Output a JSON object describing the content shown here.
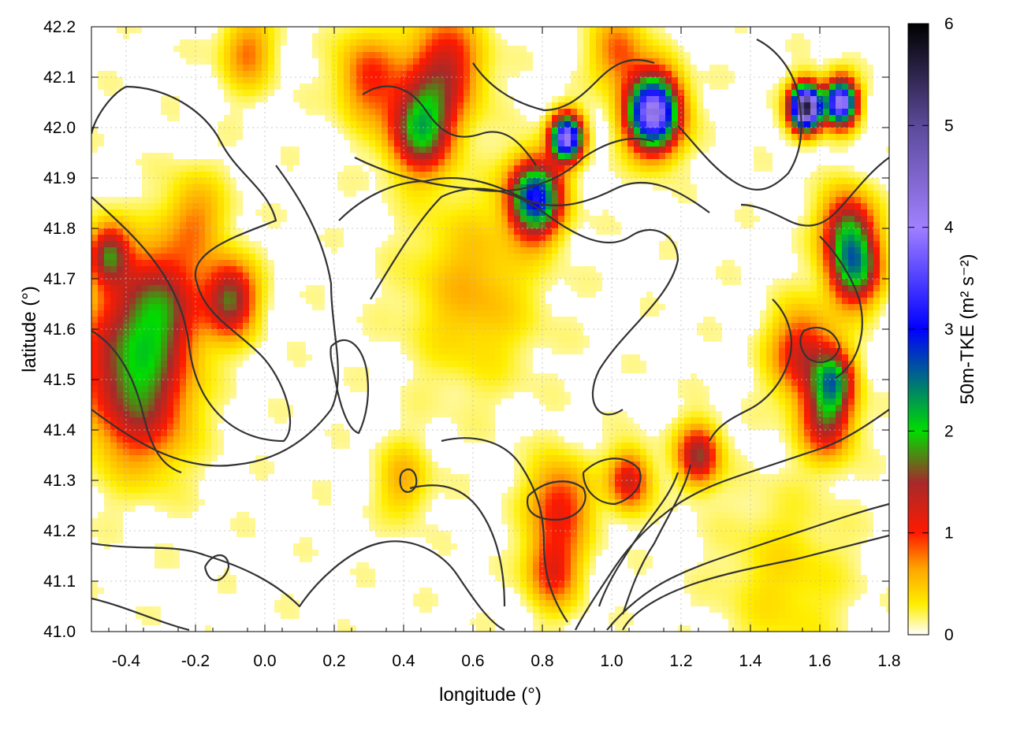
{
  "chart_data": {
    "type": "heatmap",
    "xlabel": "longitude (°)",
    "ylabel": "latitude (°)",
    "colorbar_label": "50m-TKE (m² s⁻²)",
    "xlim": [
      -0.5,
      1.8
    ],
    "ylim": [
      41.0,
      42.2
    ],
    "x_ticks": [
      "-0.4",
      "-0.2",
      "0.0",
      "0.2",
      "0.4",
      "0.6",
      "0.8",
      "1.0",
      "1.2",
      "1.4",
      "1.6",
      "1.8"
    ],
    "y_ticks": [
      "41.0",
      "41.1",
      "41.2",
      "41.3",
      "41.4",
      "41.5",
      "41.6",
      "41.7",
      "41.8",
      "41.9",
      "42.0",
      "42.1",
      "42.2"
    ],
    "colorbar_range": [
      0,
      6
    ],
    "colorbar_ticks": [
      "0",
      "1",
      "2",
      "3",
      "4",
      "5",
      "6"
    ],
    "grid": true,
    "colormap": [
      {
        "v": 0.0,
        "c": "#ffffff"
      },
      {
        "v": 0.3,
        "c": "#ffee00"
      },
      {
        "v": 0.65,
        "c": "#ffa500"
      },
      {
        "v": 1.0,
        "c": "#ff1a00"
      },
      {
        "v": 1.5,
        "c": "#a52a2a"
      },
      {
        "v": 2.0,
        "c": "#00dd00"
      },
      {
        "v": 3.0,
        "c": "#0000ff"
      },
      {
        "v": 4.0,
        "c": "#a080ff"
      },
      {
        "v": 5.0,
        "c": "#5b4a9a"
      },
      {
        "v": 6.0,
        "c": "#000000"
      }
    ],
    "hotspots": [
      {
        "lon": -0.4,
        "lat": 41.55,
        "tke": 1.1,
        "r": 0.1
      },
      {
        "lon": -0.3,
        "lat": 41.65,
        "tke": 1.3,
        "r": 0.08
      },
      {
        "lon": -0.35,
        "lat": 41.45,
        "tke": 1.0,
        "r": 0.09
      },
      {
        "lon": -0.1,
        "lat": 41.66,
        "tke": 1.6,
        "r": 0.05
      },
      {
        "lon": -0.45,
        "lat": 41.75,
        "tke": 1.5,
        "r": 0.04
      },
      {
        "lon": -0.2,
        "lat": 41.82,
        "tke": 0.6,
        "r": 0.06
      },
      {
        "lon": 0.45,
        "lat": 42.0,
        "tke": 2.0,
        "r": 0.06
      },
      {
        "lon": 0.52,
        "lat": 42.12,
        "tke": 1.2,
        "r": 0.07
      },
      {
        "lon": 0.78,
        "lat": 41.86,
        "tke": 3.0,
        "r": 0.05
      },
      {
        "lon": 0.87,
        "lat": 41.98,
        "tke": 4.0,
        "r": 0.03
      },
      {
        "lon": 1.12,
        "lat": 42.03,
        "tke": 4.2,
        "r": 0.05
      },
      {
        "lon": 1.56,
        "lat": 42.04,
        "tke": 5.6,
        "r": 0.03
      },
      {
        "lon": 1.66,
        "lat": 42.05,
        "tke": 4.2,
        "r": 0.03
      },
      {
        "lon": 1.7,
        "lat": 41.72,
        "tke": 2.0,
        "r": 0.05
      },
      {
        "lon": 1.68,
        "lat": 41.8,
        "tke": 1.5,
        "r": 0.05
      },
      {
        "lon": 1.55,
        "lat": 41.55,
        "tke": 1.2,
        "r": 0.06
      },
      {
        "lon": 1.64,
        "lat": 41.5,
        "tke": 1.8,
        "r": 0.04
      },
      {
        "lon": 1.62,
        "lat": 41.42,
        "tke": 1.4,
        "r": 0.05
      },
      {
        "lon": 1.25,
        "lat": 41.35,
        "tke": 1.5,
        "r": 0.04
      },
      {
        "lon": 0.85,
        "lat": 41.25,
        "tke": 1.0,
        "r": 0.06
      },
      {
        "lon": 0.83,
        "lat": 41.12,
        "tke": 1.0,
        "r": 0.05
      },
      {
        "lon": 0.6,
        "lat": 41.68,
        "tke": 0.5,
        "r": 0.12
      },
      {
        "lon": 0.3,
        "lat": 42.1,
        "tke": 0.9,
        "r": 0.06
      },
      {
        "lon": 0.4,
        "lat": 41.3,
        "tke": 0.5,
        "r": 0.05
      },
      {
        "lon": 1.5,
        "lat": 41.1,
        "tke": 0.3,
        "r": 0.12
      },
      {
        "lon": 1.05,
        "lat": 41.3,
        "tke": 1.2,
        "r": 0.04
      },
      {
        "lon": -0.05,
        "lat": 42.15,
        "tke": 0.7,
        "r": 0.05
      },
      {
        "lon": 1.02,
        "lat": 42.15,
        "tke": 0.8,
        "r": 0.05
      }
    ]
  }
}
